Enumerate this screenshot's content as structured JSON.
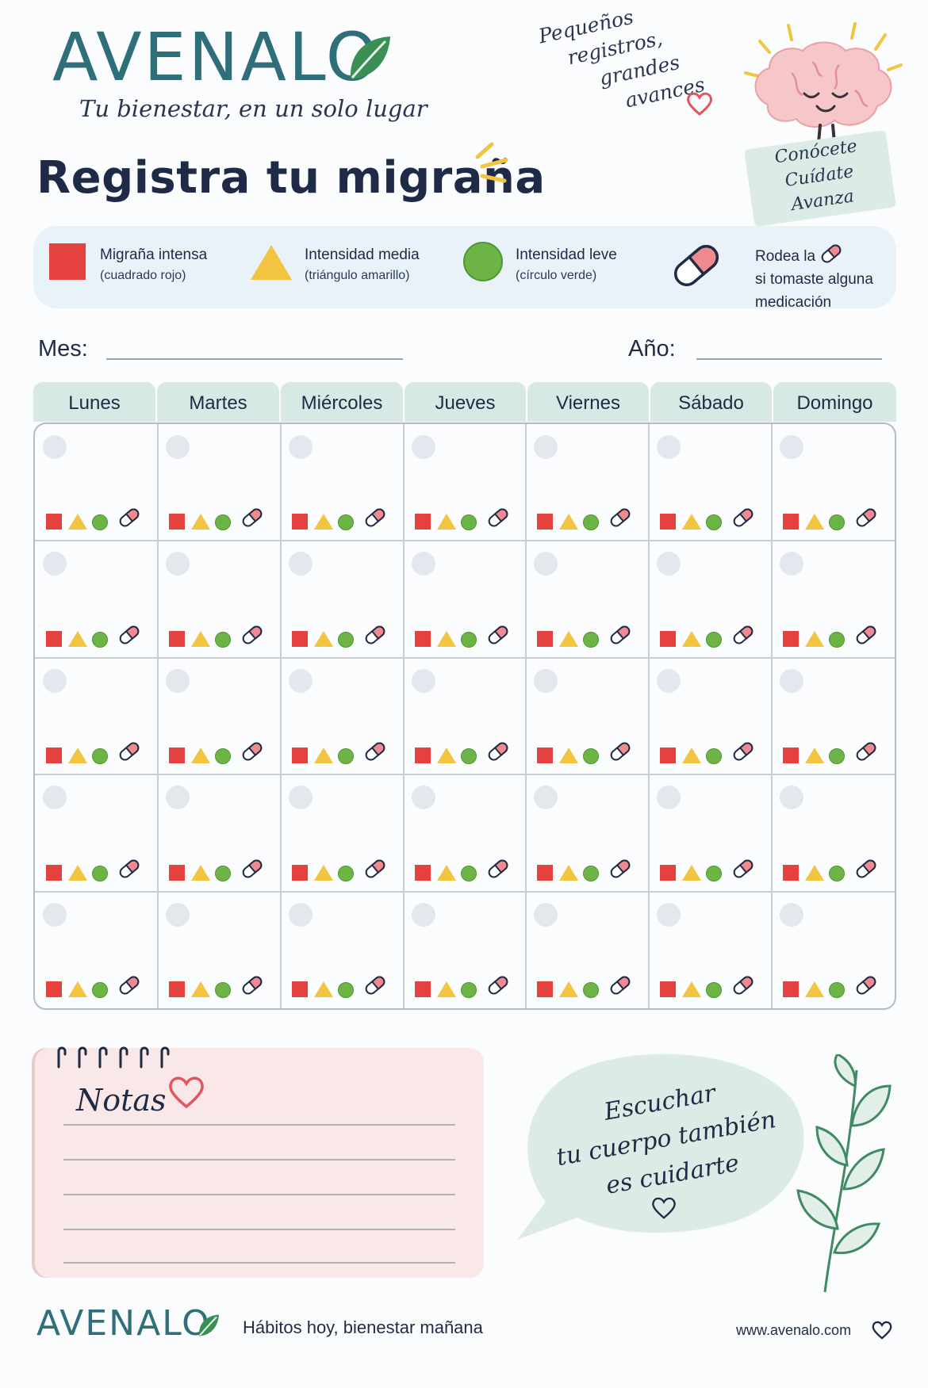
{
  "brand": {
    "logo": "AVENALO",
    "tagline": "Tu bienestar, en un solo lugar"
  },
  "title": "Registra tu migraña",
  "top_quote": [
    "Pequeños",
    "registros,",
    "grandes",
    "avances"
  ],
  "brain_tag": [
    "Conócete",
    "Cuídate",
    "Avanza"
  ],
  "legend": {
    "intense": {
      "label": "Migraña intensa",
      "sub": "(cuadrado rojo)"
    },
    "medium": {
      "label": "Intensidad media",
      "sub": "(triángulo amarillo)"
    },
    "mild": {
      "label": "Intensidad leve",
      "sub": "(círculo verde)"
    },
    "medication": {
      "line1": "Rodea la",
      "line2": "si tomaste alguna",
      "line3": "medicación"
    }
  },
  "fields": {
    "month_label": "Mes:",
    "year_label": "Año:"
  },
  "weekdays": [
    "Lunes",
    "Martes",
    "Miércoles",
    "Jueves",
    "Viernes",
    "Sábado",
    "Domingo"
  ],
  "calendar": {
    "rows": 5,
    "cols": 7
  },
  "notes": {
    "title": "Notas",
    "lines": 5
  },
  "bubble": [
    "Escuchar",
    "tu cuerpo también",
    "es cuidarte"
  ],
  "footer": {
    "logo": "AVENALO",
    "tagline": "Hábitos hoy, bienestar mañana",
    "url": "www.avenalo.com"
  },
  "colors": {
    "red": "#e5413f",
    "yellow": "#f2c440",
    "green": "#6cb445",
    "teal": "#2f6f7a",
    "legend_bg": "#e9f1f9",
    "header_bg": "#d7e9e5",
    "notes_bg": "#fae8e8"
  },
  "icons": [
    "leaf-icon",
    "heart-icon",
    "brain-icon",
    "pill-icon",
    "sun-rays-icon",
    "plant-icon"
  ]
}
